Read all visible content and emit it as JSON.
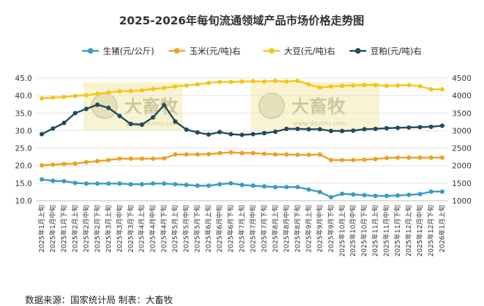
{
  "chart_data": {
    "type": "line",
    "title": "2025-2026年每旬流通领域产品市场价格走势图",
    "legend_position": "top",
    "left_axis": {
      "ylim": [
        10.0,
        45.0
      ],
      "ticks": [
        "10.0",
        "15.0",
        "20.0",
        "25.0",
        "30.0",
        "35.0",
        "40.0",
        "45.0"
      ]
    },
    "right_axis": {
      "ylim": [
        1000,
        4500
      ],
      "ticks": [
        "1000",
        "1500",
        "2000",
        "2500",
        "3000",
        "3500",
        "4000",
        "4500"
      ]
    },
    "grid": true,
    "categories": [
      "2025年1月上旬",
      "2025年1月中旬",
      "2025年1月下旬",
      "2025年2月上旬",
      "2025年2月中旬",
      "2025年2月下旬",
      "2025年3月上旬",
      "2025年3月中旬",
      "2025年3月下旬",
      "2025年4月上旬",
      "2025年4月中旬",
      "2025年4月下旬",
      "2025年5月上旬",
      "2025年5月中旬",
      "2025年5月下旬",
      "2025年6月上旬",
      "2025年6月中旬",
      "2025年6月下旬",
      "2025年7月上旬",
      "2025年7月中旬",
      "2025年7月下旬",
      "2025年8月上旬",
      "2025年8月中旬",
      "2025年8月下旬",
      "2025年9月上旬",
      "2025年9月中旬",
      "2025年9月下旬",
      "2025年10月上旬",
      "2025年10月中旬",
      "2025年10月下旬",
      "2025年11月上旬",
      "2025年11月中旬",
      "2025年11月下旬",
      "2025年12月上旬",
      "2025年12月中旬",
      "2025年12月下旬",
      "2026年1月上旬"
    ],
    "series": [
      {
        "name": "生猪(元/公斤)",
        "axis": "left",
        "color": "#3a9bc8",
        "values": [
          16.1,
          15.7,
          15.6,
          15.1,
          14.9,
          14.9,
          14.9,
          14.9,
          14.7,
          14.7,
          14.9,
          14.9,
          14.7,
          14.5,
          14.3,
          14.3,
          14.7,
          15.0,
          14.5,
          14.3,
          14.1,
          13.9,
          13.9,
          13.9,
          13.2,
          12.5,
          11.0,
          12.0,
          11.8,
          11.6,
          11.4,
          11.4,
          11.5,
          11.7,
          11.9,
          12.6,
          12.6
        ]
      },
      {
        "name": "玉米(元/吨)右",
        "axis": "right",
        "color": "#f0a020",
        "values": [
          2010,
          2030,
          2050,
          2060,
          2100,
          2130,
          2160,
          2200,
          2200,
          2200,
          2200,
          2210,
          2320,
          2320,
          2320,
          2330,
          2360,
          2380,
          2360,
          2360,
          2340,
          2320,
          2320,
          2310,
          2310,
          2320,
          2160,
          2160,
          2160,
          2170,
          2190,
          2220,
          2230,
          2230,
          2230,
          2230,
          2230
        ]
      },
      {
        "name": "大豆(元/吨)右",
        "axis": "right",
        "color": "#f5c518",
        "values": [
          3920,
          3940,
          3960,
          3990,
          4010,
          4050,
          4090,
          4120,
          4130,
          4150,
          4190,
          4220,
          4260,
          4290,
          4320,
          4360,
          4390,
          4390,
          4400,
          4410,
          4400,
          4420,
          4400,
          4420,
          4320,
          4230,
          4260,
          4280,
          4290,
          4300,
          4300,
          4280,
          4290,
          4300,
          4270,
          4180,
          4180
        ]
      },
      {
        "name": "豆粕(元/吨)右",
        "axis": "right",
        "color": "#214a5e",
        "values": [
          2900,
          3060,
          3220,
          3500,
          3620,
          3740,
          3650,
          3420,
          3190,
          3170,
          3380,
          3730,
          3260,
          3030,
          2950,
          2890,
          2960,
          2900,
          2880,
          2900,
          2930,
          2970,
          3050,
          3050,
          3040,
          3040,
          2990,
          2990,
          3000,
          3040,
          3050,
          3070,
          3080,
          3090,
          3100,
          3110,
          3140
        ]
      }
    ]
  },
  "watermark": {
    "text": "大畜牧",
    "sub": "www.dxumu.com"
  },
  "footer": {
    "source": "数据来源：国家统计局  制表：大畜牧"
  }
}
